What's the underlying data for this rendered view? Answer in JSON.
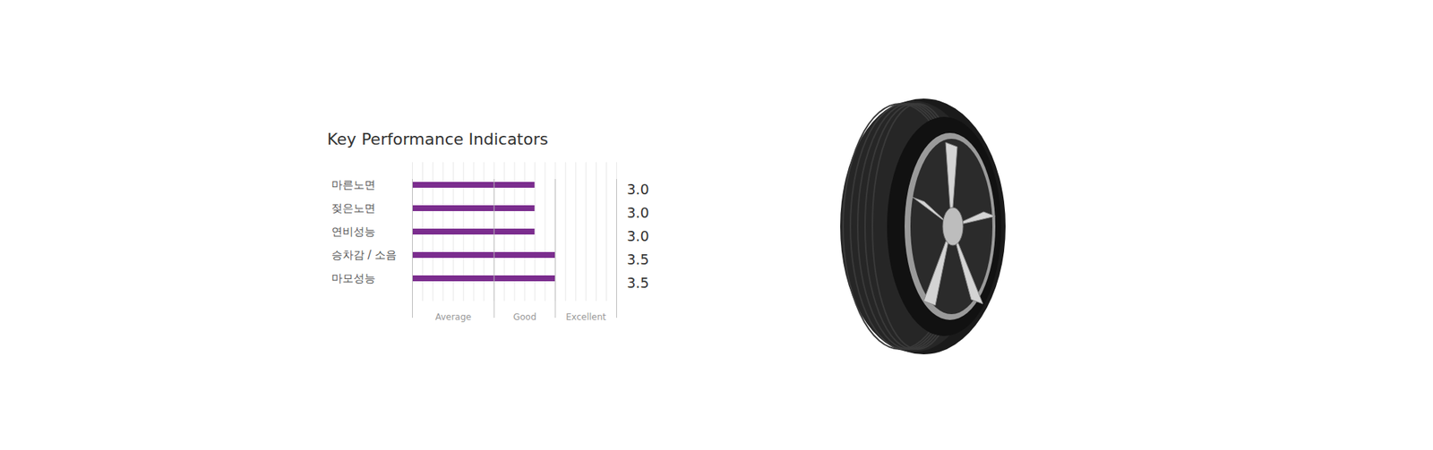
{
  "chart_data": {
    "type": "bar",
    "orientation": "horizontal",
    "title": "Key Performance Indicators",
    "categories": [
      "마른노면",
      "젖은노면",
      "연비성능",
      "승차감 / 소음",
      "마모성능"
    ],
    "values": [
      3,
      3,
      3,
      3.5,
      3.5
    ],
    "value_labels": [
      "3.0",
      "3.0",
      "3.0",
      "3.5",
      "3.5"
    ],
    "data_labels": true,
    "color": "#7b2d8e",
    "xlim": [
      0,
      5
    ],
    "xticks": [
      0,
      0.25,
      0.5,
      0.75,
      1,
      1.25,
      1.5,
      1.75,
      2,
      2.25,
      2.5,
      2.75,
      3,
      3.25,
      3.5,
      3.75,
      4,
      4.25,
      4.5,
      4.75,
      5
    ],
    "grid": true,
    "tick_labels": "y",
    "rating_bands": [
      {
        "label": "Average",
        "from": 0,
        "to": 2
      },
      {
        "label": "Good",
        "from": 2,
        "to": 3.5
      },
      {
        "label": "Excellent",
        "from": 3.5,
        "to": 5
      }
    ]
  }
}
